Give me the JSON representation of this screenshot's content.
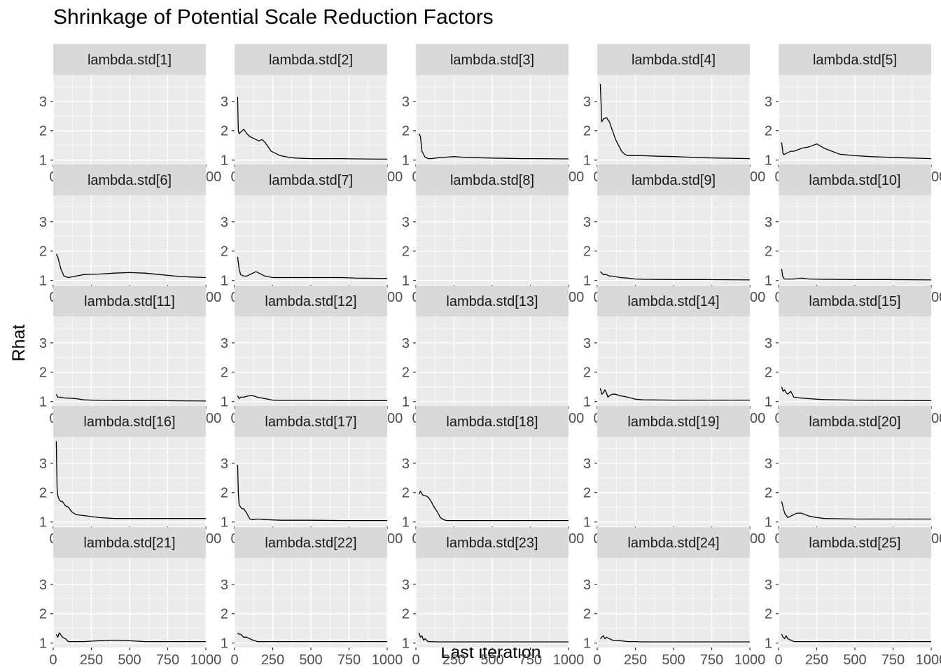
{
  "chart_data": {
    "type": "line",
    "title": "Shrinkage of Potential Scale Reduction Factors",
    "xlabel": "Last iteration",
    "ylabel": "Rhat",
    "xlim": [
      0,
      1000
    ],
    "ylim": [
      0.85,
      3.9
    ],
    "x_ticks": [
      0,
      250,
      500,
      750,
      1000
    ],
    "y_ticks": [
      1,
      2,
      3
    ],
    "grid": true,
    "layout": "facet grid 5 x 5",
    "colors": {
      "panel_bg": "#ebebeb",
      "strip_bg": "#d9d9d9",
      "grid": "#ffffff",
      "line": "#000000",
      "tick_text": "#4d4d4d"
    },
    "panels": [
      {
        "label": "lambda.std[1]",
        "x": [],
        "y": []
      },
      {
        "label": "lambda.std[2]",
        "x": [
          20,
          25,
          30,
          40,
          60,
          80,
          100,
          120,
          140,
          160,
          180,
          200,
          220,
          240,
          260,
          280,
          300,
          350,
          400,
          500,
          600,
          700,
          800,
          1000
        ],
        "y": [
          3.15,
          2.0,
          1.9,
          1.95,
          2.05,
          1.9,
          1.8,
          1.75,
          1.7,
          1.65,
          1.7,
          1.6,
          1.45,
          1.3,
          1.25,
          1.2,
          1.15,
          1.1,
          1.07,
          1.05,
          1.05,
          1.05,
          1.04,
          1.03
        ]
      },
      {
        "label": "lambda.std[3]",
        "x": [
          20,
          30,
          40,
          60,
          80,
          100,
          150,
          200,
          250,
          300,
          400,
          500,
          600,
          700,
          800,
          1000
        ],
        "y": [
          1.9,
          1.8,
          1.3,
          1.1,
          1.05,
          1.05,
          1.08,
          1.1,
          1.12,
          1.1,
          1.08,
          1.07,
          1.06,
          1.05,
          1.05,
          1.04
        ]
      },
      {
        "label": "lambda.std[4]",
        "x": [
          20,
          30,
          40,
          60,
          80,
          100,
          120,
          140,
          160,
          180,
          200,
          250,
          300,
          400,
          500,
          600,
          700,
          800,
          1000
        ],
        "y": [
          3.6,
          2.3,
          2.4,
          2.45,
          2.3,
          2.0,
          1.7,
          1.5,
          1.3,
          1.2,
          1.15,
          1.15,
          1.15,
          1.13,
          1.12,
          1.1,
          1.08,
          1.07,
          1.05
        ]
      },
      {
        "label": "lambda.std[5]",
        "x": [
          20,
          30,
          40,
          60,
          80,
          100,
          150,
          200,
          250,
          300,
          350,
          400,
          500,
          600,
          700,
          800,
          1000
        ],
        "y": [
          1.6,
          1.2,
          1.2,
          1.25,
          1.3,
          1.3,
          1.4,
          1.45,
          1.55,
          1.4,
          1.3,
          1.2,
          1.15,
          1.12,
          1.1,
          1.08,
          1.05
        ]
      },
      {
        "label": "lambda.std[6]",
        "x": [
          20,
          30,
          50,
          70,
          100,
          150,
          200,
          300,
          400,
          500,
          600,
          700,
          800,
          900,
          1000
        ],
        "y": [
          1.9,
          1.8,
          1.4,
          1.15,
          1.1,
          1.15,
          1.2,
          1.22,
          1.25,
          1.27,
          1.25,
          1.2,
          1.15,
          1.12,
          1.1
        ]
      },
      {
        "label": "lambda.std[7]",
        "x": [
          20,
          30,
          40,
          60,
          80,
          100,
          120,
          140,
          160,
          180,
          200,
          250,
          300,
          400,
          500,
          600,
          700,
          800,
          1000
        ],
        "y": [
          1.8,
          1.4,
          1.2,
          1.15,
          1.15,
          1.2,
          1.25,
          1.3,
          1.25,
          1.2,
          1.15,
          1.1,
          1.1,
          1.1,
          1.1,
          1.1,
          1.1,
          1.08,
          1.07
        ]
      },
      {
        "label": "lambda.std[8]",
        "x": [],
        "y": []
      },
      {
        "label": "lambda.std[9]",
        "x": [
          20,
          30,
          40,
          60,
          80,
          100,
          150,
          200,
          250,
          300,
          500,
          700,
          1000
        ],
        "y": [
          1.3,
          1.25,
          1.2,
          1.2,
          1.15,
          1.15,
          1.1,
          1.08,
          1.05,
          1.04,
          1.03,
          1.03,
          1.02
        ]
      },
      {
        "label": "lambda.std[10]",
        "x": [
          20,
          25,
          30,
          40,
          60,
          80,
          100,
          150,
          200,
          300,
          500,
          700,
          1000
        ],
        "y": [
          1.4,
          1.2,
          1.1,
          1.05,
          1.05,
          1.05,
          1.05,
          1.08,
          1.05,
          1.04,
          1.03,
          1.03,
          1.02
        ]
      },
      {
        "label": "lambda.std[11]",
        "x": [
          20,
          30,
          50,
          80,
          100,
          150,
          200,
          300,
          500,
          700,
          1000
        ],
        "y": [
          1.25,
          1.15,
          1.15,
          1.12,
          1.12,
          1.1,
          1.06,
          1.04,
          1.03,
          1.03,
          1.02
        ]
      },
      {
        "label": "lambda.std[12]",
        "x": [
          20,
          30,
          40,
          60,
          80,
          100,
          120,
          150,
          200,
          250,
          300,
          500,
          700,
          1000
        ],
        "y": [
          1.2,
          1.1,
          1.15,
          1.15,
          1.18,
          1.2,
          1.2,
          1.15,
          1.1,
          1.05,
          1.04,
          1.04,
          1.03,
          1.03
        ]
      },
      {
        "label": "lambda.std[13]",
        "x": [],
        "y": []
      },
      {
        "label": "lambda.std[14]",
        "x": [
          20,
          30,
          40,
          50,
          60,
          70,
          80,
          100,
          120,
          150,
          200,
          250,
          300,
          500,
          700,
          1000
        ],
        "y": [
          1.45,
          1.25,
          1.3,
          1.4,
          1.3,
          1.15,
          1.2,
          1.25,
          1.25,
          1.2,
          1.15,
          1.08,
          1.06,
          1.05,
          1.05,
          1.05
        ]
      },
      {
        "label": "lambda.std[15]",
        "x": [
          20,
          30,
          40,
          50,
          60,
          80,
          100,
          150,
          200,
          250,
          300,
          500,
          700,
          1000
        ],
        "y": [
          1.5,
          1.35,
          1.4,
          1.3,
          1.25,
          1.35,
          1.15,
          1.12,
          1.1,
          1.08,
          1.07,
          1.05,
          1.04,
          1.03
        ]
      },
      {
        "label": "lambda.std[16]",
        "x": [
          20,
          25,
          30,
          40,
          50,
          60,
          80,
          100,
          120,
          150,
          200,
          300,
          400,
          500,
          700,
          1000
        ],
        "y": [
          3.75,
          2.2,
          1.9,
          1.75,
          1.7,
          1.7,
          1.55,
          1.5,
          1.35,
          1.25,
          1.22,
          1.15,
          1.12,
          1.12,
          1.12,
          1.12
        ]
      },
      {
        "label": "lambda.std[17]",
        "x": [
          20,
          25,
          30,
          40,
          50,
          60,
          80,
          100,
          120,
          150,
          200,
          300,
          500,
          700,
          1000
        ],
        "y": [
          2.95,
          2.0,
          1.6,
          1.5,
          1.45,
          1.45,
          1.3,
          1.1,
          1.08,
          1.1,
          1.08,
          1.06,
          1.06,
          1.05,
          1.05
        ]
      },
      {
        "label": "lambda.std[18]",
        "x": [
          20,
          30,
          40,
          50,
          60,
          80,
          100,
          120,
          140,
          160,
          180,
          200,
          300,
          500,
          700,
          1000
        ],
        "y": [
          1.95,
          2.05,
          1.95,
          1.9,
          1.9,
          1.85,
          1.7,
          1.5,
          1.35,
          1.15,
          1.08,
          1.05,
          1.05,
          1.05,
          1.05,
          1.05
        ]
      },
      {
        "label": "lambda.std[19]",
        "x": [],
        "y": []
      },
      {
        "label": "lambda.std[20]",
        "x": [
          20,
          30,
          40,
          60,
          80,
          100,
          120,
          150,
          200,
          250,
          300,
          500,
          700,
          1000
        ],
        "y": [
          1.7,
          1.5,
          1.3,
          1.15,
          1.2,
          1.25,
          1.3,
          1.3,
          1.2,
          1.15,
          1.12,
          1.1,
          1.1,
          1.1
        ]
      },
      {
        "label": "lambda.std[21]",
        "x": [
          20,
          30,
          40,
          60,
          80,
          100,
          150,
          200,
          300,
          400,
          500,
          600,
          700,
          1000
        ],
        "y": [
          1.3,
          1.2,
          1.35,
          1.2,
          1.15,
          1.05,
          1.05,
          1.05,
          1.08,
          1.1,
          1.08,
          1.05,
          1.05,
          1.05
        ]
      },
      {
        "label": "lambda.std[22]",
        "x": [
          20,
          30,
          40,
          60,
          80,
          100,
          120,
          150,
          200,
          300,
          500,
          700,
          1000
        ],
        "y": [
          1.35,
          1.3,
          1.3,
          1.2,
          1.2,
          1.15,
          1.1,
          1.05,
          1.05,
          1.05,
          1.05,
          1.05,
          1.05
        ]
      },
      {
        "label": "lambda.std[23]",
        "x": [
          20,
          30,
          40,
          50,
          60,
          80,
          100,
          150,
          300,
          500,
          700,
          1000
        ],
        "y": [
          1.35,
          1.2,
          1.25,
          1.1,
          1.15,
          1.05,
          1.05,
          1.04,
          1.04,
          1.04,
          1.04,
          1.04
        ]
      },
      {
        "label": "lambda.std[24]",
        "x": [
          20,
          30,
          40,
          50,
          60,
          80,
          100,
          150,
          200,
          250,
          300,
          500,
          1000
        ],
        "y": [
          1.15,
          1.2,
          1.25,
          1.15,
          1.2,
          1.15,
          1.1,
          1.08,
          1.05,
          1.05,
          1.04,
          1.04,
          1.04
        ]
      },
      {
        "label": "lambda.std[25]",
        "x": [
          20,
          30,
          40,
          50,
          60,
          80,
          100,
          150,
          200,
          300,
          500,
          1000
        ],
        "y": [
          1.3,
          1.2,
          1.15,
          1.25,
          1.15,
          1.1,
          1.05,
          1.05,
          1.05,
          1.05,
          1.05,
          1.05
        ]
      }
    ]
  }
}
